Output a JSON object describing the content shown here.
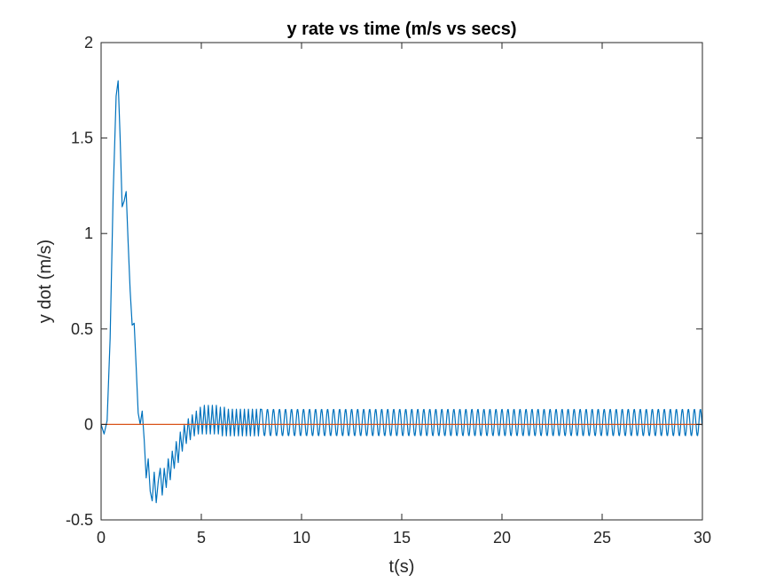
{
  "chart_data": {
    "type": "line",
    "title": "y  rate vs time (m/s vs secs)",
    "xlabel": "t(s)",
    "ylabel": "y dot (m/s)",
    "xlim": [
      0,
      30
    ],
    "ylim": [
      -0.5,
      2
    ],
    "xticks": [
      0,
      5,
      10,
      15,
      20,
      25,
      30
    ],
    "xtick_labels": [
      "0",
      "5",
      "10",
      "15",
      "20",
      "25",
      "30"
    ],
    "yticks": [
      -0.5,
      0,
      0.5,
      1,
      1.5,
      2
    ],
    "ytick_labels": [
      "-0.5",
      "0",
      "0.5",
      "1",
      "1.5",
      "2"
    ],
    "grid": false,
    "legend": "none",
    "series": [
      {
        "color": "#0072BD",
        "x": [
          0,
          0.15,
          0.3,
          0.45,
          0.6,
          0.75,
          0.85,
          0.95,
          1.05,
          1.15,
          1.25,
          1.35,
          1.45,
          1.55,
          1.65,
          1.75,
          1.85,
          1.95,
          2.05,
          2.15,
          2.25,
          2.35,
          2.45,
          2.55,
          2.65,
          2.75,
          2.85,
          2.95,
          3.05,
          3.15,
          3.25,
          3.35,
          3.45,
          3.55,
          3.65,
          3.75,
          3.85,
          3.95,
          4.05,
          4.15,
          4.25,
          4.35,
          4.45,
          4.55,
          4.65,
          4.75,
          4.85,
          4.95,
          5.05,
          5.15,
          5.25,
          5.35,
          5.45,
          5.55,
          5.65,
          5.75,
          5.85,
          5.95,
          6.05,
          6.15,
          6.25,
          6.35,
          6.45,
          6.55,
          6.65,
          6.75,
          6.85,
          6.95,
          7.05,
          7.15,
          7.25,
          7.35,
          7.45,
          7.55,
          7.65,
          7.75,
          7.85,
          7.95
        ],
        "y": [
          0.0,
          -0.05,
          0.02,
          0.45,
          1.2,
          1.72,
          1.8,
          1.5,
          1.14,
          1.17,
          1.22,
          0.95,
          0.7,
          0.52,
          0.53,
          0.3,
          0.06,
          0.0,
          0.07,
          -0.08,
          -0.28,
          -0.18,
          -0.35,
          -0.4,
          -0.25,
          -0.41,
          -0.3,
          -0.23,
          -0.37,
          -0.23,
          -0.33,
          -0.18,
          -0.29,
          -0.14,
          -0.23,
          -0.09,
          -0.2,
          -0.04,
          -0.14,
          0.0,
          -0.1,
          0.03,
          -0.08,
          0.05,
          -0.06,
          0.07,
          -0.05,
          0.09,
          -0.05,
          0.1,
          -0.05,
          0.1,
          -0.05,
          0.1,
          -0.05,
          0.1,
          -0.05,
          0.09,
          -0.06,
          0.09,
          -0.06,
          0.08,
          -0.06,
          0.08,
          -0.06,
          0.08,
          -0.06,
          0.08,
          -0.06,
          0.08,
          -0.06,
          0.08,
          -0.06,
          0.08,
          -0.06,
          0.08,
          -0.06,
          0.08
        ]
      },
      {
        "color": "#D95319",
        "x": [
          0,
          30
        ],
        "y": [
          0,
          0
        ]
      }
    ],
    "steady_state_oscillation": {
      "series_index": 0,
      "from_x": 8.0,
      "to_x": 30,
      "period": 0.3,
      "center": 0.01,
      "amplitude": 0.07
    }
  }
}
